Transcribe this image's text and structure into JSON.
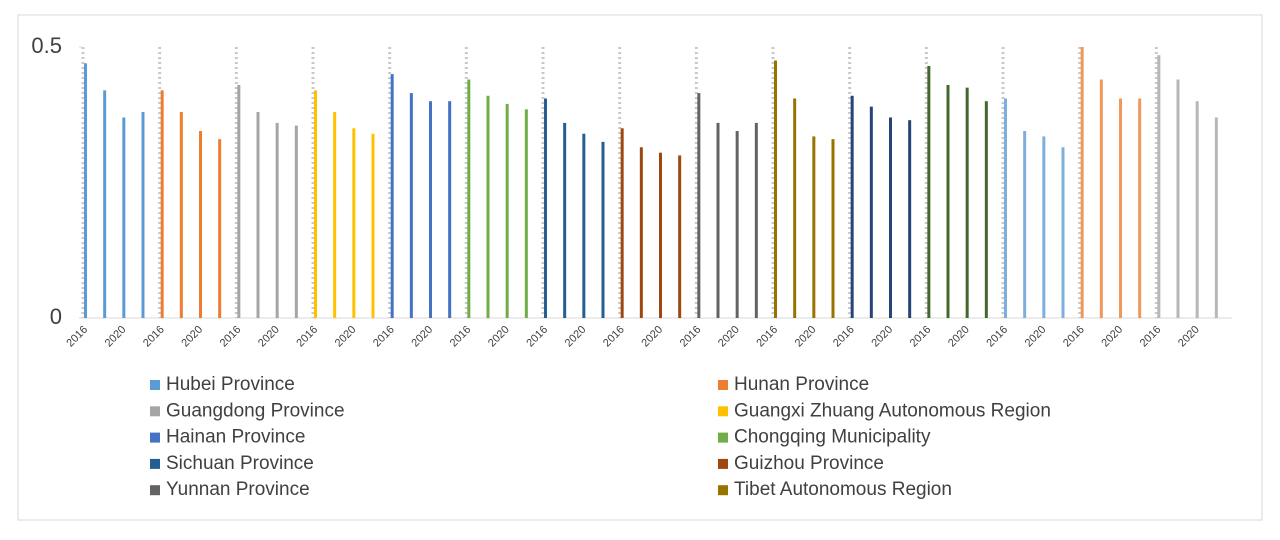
{
  "chart_data": {
    "type": "bar",
    "categories": [
      "2016",
      null,
      "2020",
      null,
      "2016",
      null,
      "2020",
      null,
      "2016",
      null,
      "2020",
      null,
      "2016",
      null,
      "2020",
      null,
      "2016",
      null,
      "2020",
      null,
      "2016",
      null,
      "2020",
      null,
      "2016",
      null,
      "2020",
      null,
      "2016",
      null,
      "2020",
      null,
      "2016",
      null,
      "2020",
      null,
      "2016",
      null,
      "2020",
      null,
      "2016",
      null,
      "2020",
      null,
      "2016",
      null,
      "2020",
      null,
      "2016",
      null,
      "2020",
      null,
      "2016",
      null,
      "2020",
      null,
      "2016",
      null,
      "2020",
      null
    ],
    "series": [
      {
        "name": "Hubei Province",
        "color": "#5b9bd5",
        "values": [
          0.47,
          0.42,
          0.37,
          0.38,
          null,
          null,
          null,
          null,
          null,
          null,
          null,
          null,
          null,
          null,
          null,
          null,
          null,
          null,
          null,
          null,
          null,
          null,
          null,
          null,
          null,
          null,
          null,
          null,
          null,
          null,
          null,
          null,
          null,
          null,
          null,
          null,
          null,
          null,
          null,
          null,
          null,
          null,
          null,
          null,
          null,
          null,
          null,
          null,
          null,
          null,
          null,
          null,
          null,
          null,
          null,
          null,
          null,
          null,
          null,
          null
        ]
      },
      {
        "name": "Hunan Province",
        "color": "#ed7d31",
        "values": [
          null,
          null,
          null,
          null,
          0.42,
          0.38,
          0.345,
          0.33,
          null,
          null,
          null,
          null,
          null,
          null,
          null,
          null,
          null,
          null,
          null,
          null,
          null,
          null,
          null,
          null,
          null,
          null,
          null,
          null,
          null,
          null,
          null,
          null,
          null,
          null,
          null,
          null,
          null,
          null,
          null,
          null,
          null,
          null,
          null,
          null,
          null,
          null,
          null,
          null,
          null,
          null,
          null,
          null,
          null,
          null,
          null,
          null,
          null,
          null,
          null,
          null
        ]
      },
      {
        "name": "Guangdong Province",
        "color": "#a5a5a5",
        "values": [
          null,
          null,
          null,
          null,
          null,
          null,
          null,
          null,
          0.43,
          0.38,
          0.36,
          0.355,
          null,
          null,
          null,
          null,
          null,
          null,
          null,
          null,
          null,
          null,
          null,
          null,
          null,
          null,
          null,
          null,
          null,
          null,
          null,
          null,
          null,
          null,
          null,
          null,
          null,
          null,
          null,
          null,
          null,
          null,
          null,
          null,
          null,
          null,
          null,
          null,
          null,
          null,
          null,
          null,
          null,
          null,
          null,
          null,
          null,
          null,
          null,
          null
        ]
      },
      {
        "name": "Guangxi Zhuang Autonomous Region",
        "color": "#ffc000",
        "values": [
          null,
          null,
          null,
          null,
          null,
          null,
          null,
          null,
          null,
          null,
          null,
          null,
          0.42,
          0.38,
          0.35,
          0.34,
          null,
          null,
          null,
          null,
          null,
          null,
          null,
          null,
          null,
          null,
          null,
          null,
          null,
          null,
          null,
          null,
          null,
          null,
          null,
          null,
          null,
          null,
          null,
          null,
          null,
          null,
          null,
          null,
          null,
          null,
          null,
          null,
          null,
          null,
          null,
          null,
          null,
          null,
          null,
          null,
          null,
          null,
          null,
          null
        ]
      },
      {
        "name": "Hainan Province",
        "color": "#4472c4",
        "values": [
          null,
          null,
          null,
          null,
          null,
          null,
          null,
          null,
          null,
          null,
          null,
          null,
          null,
          null,
          null,
          null,
          0.45,
          0.415,
          0.4,
          0.4,
          null,
          null,
          null,
          null,
          null,
          null,
          null,
          null,
          null,
          null,
          null,
          null,
          null,
          null,
          null,
          null,
          null,
          null,
          null,
          null,
          null,
          null,
          null,
          null,
          null,
          null,
          null,
          null,
          null,
          null,
          null,
          null,
          null,
          null,
          null,
          null,
          null,
          null,
          null,
          null
        ]
      },
      {
        "name": "Chongqing Municipality",
        "color": "#70ad47",
        "values": [
          null,
          null,
          null,
          null,
          null,
          null,
          null,
          null,
          null,
          null,
          null,
          null,
          null,
          null,
          null,
          null,
          null,
          null,
          null,
          null,
          0.44,
          0.41,
          0.395,
          0.385,
          null,
          null,
          null,
          null,
          null,
          null,
          null,
          null,
          null,
          null,
          null,
          null,
          null,
          null,
          null,
          null,
          null,
          null,
          null,
          null,
          null,
          null,
          null,
          null,
          null,
          null,
          null,
          null,
          null,
          null,
          null,
          null,
          null,
          null,
          null,
          null
        ]
      },
      {
        "name": "Sichuan Province",
        "color": "#255e91",
        "values": [
          null,
          null,
          null,
          null,
          null,
          null,
          null,
          null,
          null,
          null,
          null,
          null,
          null,
          null,
          null,
          null,
          null,
          null,
          null,
          null,
          null,
          null,
          null,
          null,
          0.405,
          0.36,
          0.34,
          0.325,
          null,
          null,
          null,
          null,
          null,
          null,
          null,
          null,
          null,
          null,
          null,
          null,
          null,
          null,
          null,
          null,
          null,
          null,
          null,
          null,
          null,
          null,
          null,
          null,
          null,
          null,
          null,
          null,
          null,
          null,
          null,
          null
        ]
      },
      {
        "name": "Guizhou Province",
        "color": "#9e480e",
        "values": [
          null,
          null,
          null,
          null,
          null,
          null,
          null,
          null,
          null,
          null,
          null,
          null,
          null,
          null,
          null,
          null,
          null,
          null,
          null,
          null,
          null,
          null,
          null,
          null,
          null,
          null,
          null,
          null,
          0.35,
          0.315,
          0.305,
          0.3,
          null,
          null,
          null,
          null,
          null,
          null,
          null,
          null,
          null,
          null,
          null,
          null,
          null,
          null,
          null,
          null,
          null,
          null,
          null,
          null,
          null,
          null,
          null,
          null,
          null,
          null,
          null,
          null
        ]
      },
      {
        "name": "Yunnan Province",
        "color": "#636363",
        "values": [
          null,
          null,
          null,
          null,
          null,
          null,
          null,
          null,
          null,
          null,
          null,
          null,
          null,
          null,
          null,
          null,
          null,
          null,
          null,
          null,
          null,
          null,
          null,
          null,
          null,
          null,
          null,
          null,
          null,
          null,
          null,
          null,
          0.415,
          0.36,
          0.345,
          0.36,
          null,
          null,
          null,
          null,
          null,
          null,
          null,
          null,
          null,
          null,
          null,
          null,
          null,
          null,
          null,
          null,
          null,
          null,
          null,
          null,
          null,
          null,
          null,
          null
        ]
      },
      {
        "name": "Tibet Autonomous Region",
        "color": "#997300",
        "values": [
          null,
          null,
          null,
          null,
          null,
          null,
          null,
          null,
          null,
          null,
          null,
          null,
          null,
          null,
          null,
          null,
          null,
          null,
          null,
          null,
          null,
          null,
          null,
          null,
          null,
          null,
          null,
          null,
          null,
          null,
          null,
          null,
          null,
          null,
          null,
          null,
          0.475,
          0.405,
          0.335,
          0.33,
          null,
          null,
          null,
          null,
          null,
          null,
          null,
          null,
          null,
          null,
          null,
          null,
          null,
          null,
          null,
          null,
          null,
          null,
          null,
          null
        ]
      },
      {
        "color": "#264478",
        "values": [
          null,
          null,
          null,
          null,
          null,
          null,
          null,
          null,
          null,
          null,
          null,
          null,
          null,
          null,
          null,
          null,
          null,
          null,
          null,
          null,
          null,
          null,
          null,
          null,
          null,
          null,
          null,
          null,
          null,
          null,
          null,
          null,
          null,
          null,
          null,
          null,
          null,
          null,
          null,
          null,
          0.41,
          0.39,
          0.37,
          0.365,
          null,
          null,
          null,
          null,
          null,
          null,
          null,
          null,
          null,
          null,
          null,
          null,
          null,
          null,
          null,
          null
        ]
      },
      {
        "color": "#43682b",
        "values": [
          null,
          null,
          null,
          null,
          null,
          null,
          null,
          null,
          null,
          null,
          null,
          null,
          null,
          null,
          null,
          null,
          null,
          null,
          null,
          null,
          null,
          null,
          null,
          null,
          null,
          null,
          null,
          null,
          null,
          null,
          null,
          null,
          null,
          null,
          null,
          null,
          null,
          null,
          null,
          null,
          null,
          null,
          null,
          null,
          0.465,
          0.43,
          0.425,
          0.4,
          null,
          null,
          null,
          null,
          null,
          null,
          null,
          null,
          null,
          null,
          null,
          null
        ]
      },
      {
        "color": "#7cafdd",
        "values": [
          null,
          null,
          null,
          null,
          null,
          null,
          null,
          null,
          null,
          null,
          null,
          null,
          null,
          null,
          null,
          null,
          null,
          null,
          null,
          null,
          null,
          null,
          null,
          null,
          null,
          null,
          null,
          null,
          null,
          null,
          null,
          null,
          null,
          null,
          null,
          null,
          null,
          null,
          null,
          null,
          null,
          null,
          null,
          null,
          null,
          null,
          null,
          null,
          0.405,
          0.345,
          0.335,
          0.315,
          null,
          null,
          null,
          null,
          null,
          null,
          null,
          null
        ]
      },
      {
        "color": "#f1975a",
        "values": [
          null,
          null,
          null,
          null,
          null,
          null,
          null,
          null,
          null,
          null,
          null,
          null,
          null,
          null,
          null,
          null,
          null,
          null,
          null,
          null,
          null,
          null,
          null,
          null,
          null,
          null,
          null,
          null,
          null,
          null,
          null,
          null,
          null,
          null,
          null,
          null,
          null,
          null,
          null,
          null,
          null,
          null,
          null,
          null,
          null,
          null,
          null,
          null,
          null,
          null,
          null,
          null,
          0.5,
          0.44,
          0.405,
          0.405,
          null,
          null,
          null,
          null
        ]
      },
      {
        "color": "#b7b7b7",
        "values": [
          null,
          null,
          null,
          null,
          null,
          null,
          null,
          null,
          null,
          null,
          null,
          null,
          null,
          null,
          null,
          null,
          null,
          null,
          null,
          null,
          null,
          null,
          null,
          null,
          null,
          null,
          null,
          null,
          null,
          null,
          null,
          null,
          null,
          null,
          null,
          null,
          null,
          null,
          null,
          null,
          null,
          null,
          null,
          null,
          null,
          null,
          null,
          null,
          null,
          null,
          null,
          null,
          null,
          null,
          null,
          null,
          0.485,
          0.44,
          0.4,
          0.37
        ]
      }
    ],
    "ylim": [
      0,
      0.5
    ],
    "yticks": [
      0,
      0.5
    ],
    "legend": "bottom"
  }
}
